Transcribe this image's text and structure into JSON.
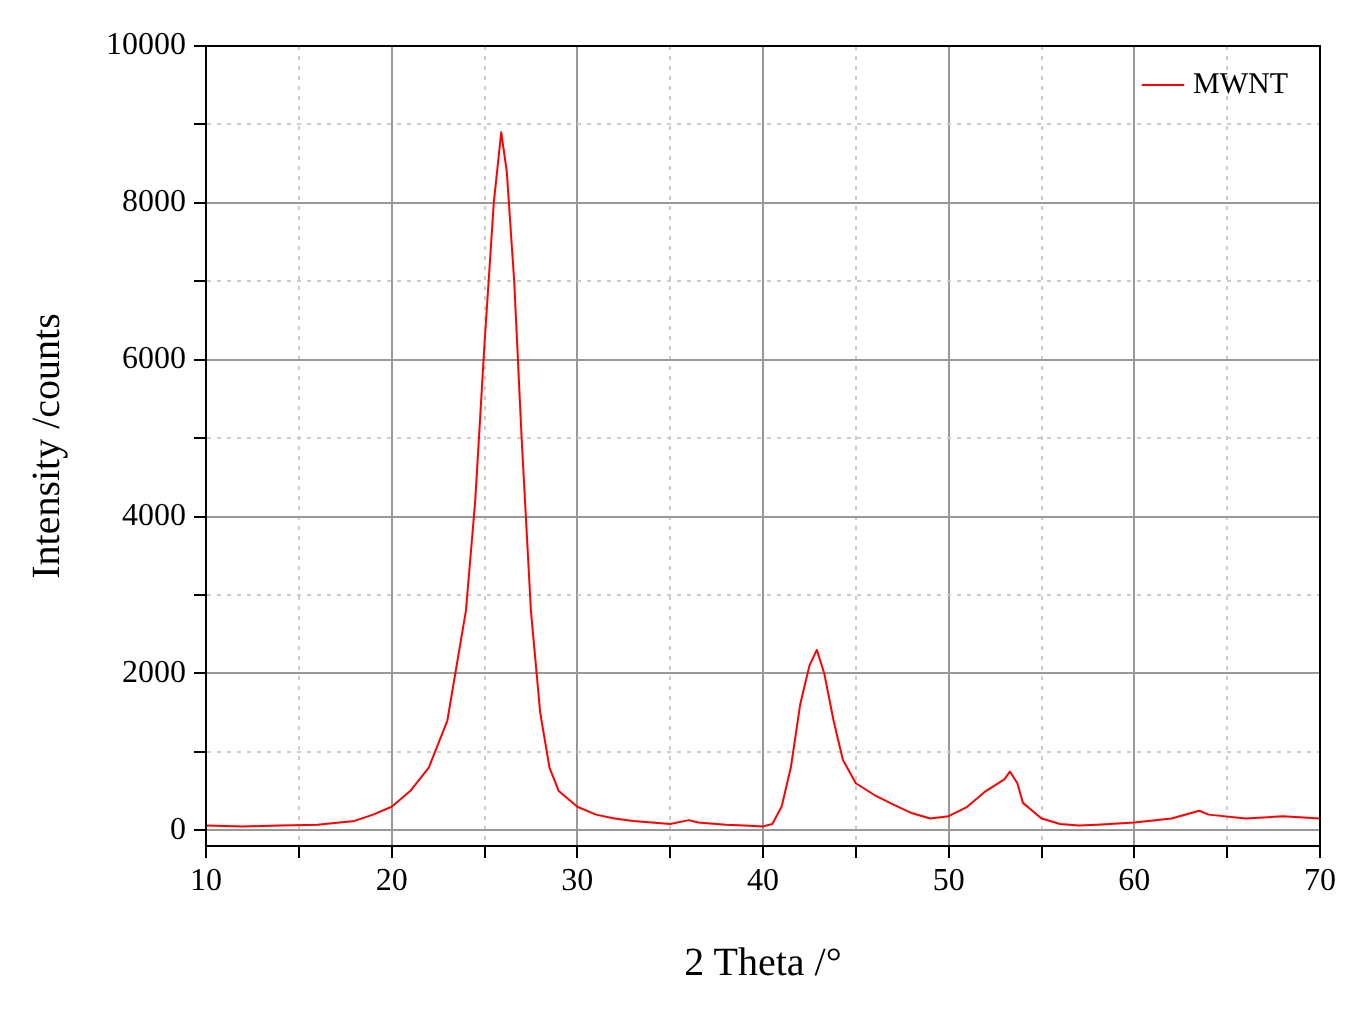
{
  "chart_data": {
    "type": "line",
    "xlabel": "2 Theta /°",
    "ylabel": "Intensity /counts",
    "xlim": [
      10,
      70
    ],
    "xticks": [
      10,
      {
        "value": 15,
        "label": null
      },
      20,
      {
        "value": 25,
        "label": null
      },
      30,
      {
        "value": 35,
        "label": null
      },
      40,
      {
        "value": 45,
        "label": null
      },
      50,
      {
        "value": 55,
        "label": null
      },
      60,
      {
        "value": 65,
        "label": null
      },
      70
    ],
    "ylim": [
      -200,
      10000
    ],
    "yticks": [
      0,
      {
        "value": 1000,
        "label": null
      },
      2000,
      {
        "value": 3000,
        "label": null
      },
      4000,
      {
        "value": 5000,
        "label": null
      },
      6000,
      {
        "value": 7000,
        "label": null
      },
      8000,
      {
        "value": 9000,
        "label": null
      },
      10000
    ],
    "grid": true,
    "legend": "top right",
    "marker": "none",
    "line_style": "solid",
    "x": [
      10,
      12,
      14,
      16,
      18,
      19,
      20,
      21,
      22,
      23,
      24,
      24.5,
      25,
      25.5,
      25.9,
      26.2,
      26.6,
      27,
      27.5,
      28,
      28.5,
      29,
      30,
      31,
      32,
      33,
      34,
      35,
      36,
      36.5,
      37,
      38,
      39,
      40,
      40.5,
      41,
      41.5,
      42,
      42.5,
      42.9,
      43.3,
      43.8,
      44.3,
      45,
      46,
      47,
      48,
      49,
      50,
      51,
      52,
      53,
      53.3,
      53.7,
      54,
      55,
      56,
      57,
      58,
      60,
      62,
      63.5,
      64,
      66,
      68,
      70
    ],
    "series": [
      {
        "name": "MWNT",
        "color": "#ff0000",
        "values": [
          60,
          50,
          60,
          70,
          120,
          200,
          300,
          500,
          800,
          1400,
          2800,
          4200,
          6200,
          8000,
          8900,
          8400,
          7000,
          5000,
          2800,
          1500,
          800,
          500,
          300,
          200,
          150,
          120,
          100,
          80,
          130,
          100,
          90,
          70,
          60,
          50,
          80,
          300,
          800,
          1600,
          2100,
          2300,
          2000,
          1400,
          900,
          600,
          450,
          330,
          220,
          150,
          180,
          300,
          500,
          650,
          750,
          600,
          350,
          150,
          80,
          60,
          70,
          100,
          150,
          250,
          200,
          150,
          180,
          150
        ]
      }
    ]
  }
}
